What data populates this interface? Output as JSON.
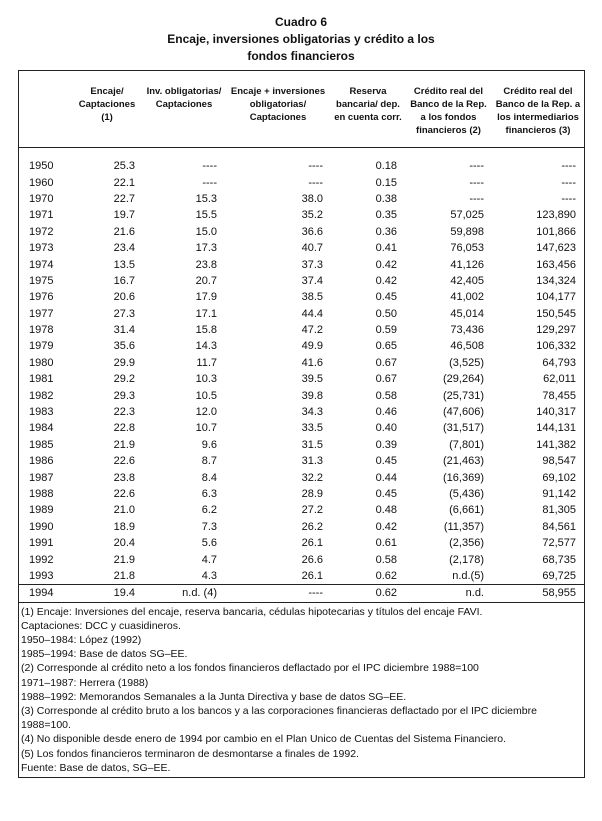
{
  "header": {
    "label": "Cuadro 6",
    "title_lines": [
      "Encaje, inversiones obligatorias y crédito a los",
      "fondos financieros"
    ]
  },
  "table": {
    "columns": [
      "Encaje/ Captaciones (1)",
      "Inv. obligatorias/ Captaciones",
      "Encaje + inversiones obligatorias/ Captaciones",
      "Reserva bancaria/ dep. en cuenta corr.",
      "Crédito real del Banco de la Rep. a los fondos financieros (2)",
      "Crédito real del Banco de la Rep. a los intermediarios financieros (3)"
    ],
    "rows": [
      [
        "1950",
        "25.3",
        "----",
        "----",
        "0.18",
        "----",
        "----"
      ],
      [
        "1960",
        "22.1",
        "----",
        "----",
        "0.15",
        "----",
        "----"
      ],
      [
        "1970",
        "22.7",
        "15.3",
        "38.0",
        "0.38",
        "----",
        "----"
      ],
      [
        "1971",
        "19.7",
        "15.5",
        "35.2",
        "0.35",
        "57,025",
        "123,890"
      ],
      [
        "1972",
        "21.6",
        "15.0",
        "36.6",
        "0.36",
        "59,898",
        "101,866"
      ],
      [
        "1973",
        "23.4",
        "17.3",
        "40.7",
        "0.41",
        "76,053",
        "147,623"
      ],
      [
        "1974",
        "13.5",
        "23.8",
        "37.3",
        "0.42",
        "41,126",
        "163,456"
      ],
      [
        "1975",
        "16.7",
        "20.7",
        "37.4",
        "0.42",
        "42,405",
        "134,324"
      ],
      [
        "1976",
        "20.6",
        "17.9",
        "38.5",
        "0.45",
        "41,002",
        "104,177"
      ],
      [
        "1977",
        "27.3",
        "17.1",
        "44.4",
        "0.50",
        "45,014",
        "150,545"
      ],
      [
        "1978",
        "31.4",
        "15.8",
        "47.2",
        "0.59",
        "73,436",
        "129,297"
      ],
      [
        "1979",
        "35.6",
        "14.3",
        "49.9",
        "0.65",
        "46,508",
        "106,332"
      ],
      [
        "1980",
        "29.9",
        "11.7",
        "41.6",
        "0.67",
        "(3,525)",
        "64,793"
      ],
      [
        "1981",
        "29.2",
        "10.3",
        "39.5",
        "0.67",
        "(29,264)",
        "62,011"
      ],
      [
        "1982",
        "29.3",
        "10.5",
        "39.8",
        "0.58",
        "(25,731)",
        "78,455"
      ],
      [
        "1983",
        "22.3",
        "12.0",
        "34.3",
        "0.46",
        "(47,606)",
        "140,317"
      ],
      [
        "1984",
        "22.8",
        "10.7",
        "33.5",
        "0.40",
        "(31,517)",
        "144,131"
      ],
      [
        "1985",
        "21.9",
        "9.6",
        "31.5",
        "0.39",
        "(7,801)",
        "141,382"
      ],
      [
        "1986",
        "22.6",
        "8.7",
        "31.3",
        "0.45",
        "(21,463)",
        "98,547"
      ],
      [
        "1987",
        "23.8",
        "8.4",
        "32.2",
        "0.44",
        "(16,369)",
        "69,102"
      ],
      [
        "1988",
        "22.6",
        "6.3",
        "28.9",
        "0.45",
        "(5,436)",
        "91,142"
      ],
      [
        "1989",
        "21.0",
        "6.2",
        "27.2",
        "0.48",
        "(6,661)",
        "81,305"
      ],
      [
        "1990",
        "18.9",
        "7.3",
        "26.2",
        "0.42",
        "(11,357)",
        "84,561"
      ],
      [
        "1991",
        "20.4",
        "5.6",
        "26.1",
        "0.61",
        "(2,356)",
        "72,577"
      ],
      [
        "1992",
        "21.9",
        "4.7",
        "26.6",
        "0.58",
        "(2,178)",
        "68,735"
      ],
      [
        "1993",
        "21.8",
        "4.3",
        "26.1",
        "0.62",
        "n.d.(5)",
        "69,725"
      ],
      [
        "1994",
        "19.4",
        "n.d. (4)",
        "----",
        "0.62",
        "n.d.",
        "58,955"
      ]
    ]
  },
  "notes": [
    "(1)  Encaje: Inversiones del encaje, reserva bancaria, cédulas hipotecarias y títulos del encaje FAVI.",
    "Captaciones: DCC y cuasidineros.",
    "1950–1984: López (1992)",
    "1985–1994: Base de datos SG–EE.",
    "(2)  Corresponde al crédito neto a los fondos financieros deflactado por el IPC diciembre 1988=100",
    "1971–1987: Herrera (1988)",
    "1988–1992: Memorandos Semanales a la Junta Directiva y base de datos SG–EE.",
    "(3)  Corresponde al crédito bruto a los bancos y a las corporaciones financieras deflactado por el IPC diciembre 1988=100.",
    "(4)  No disponible desde enero de 1994 por cambio en el Plan Unico de Cuentas del Sistema Financiero.",
    "(5)  Los fondos financieros terminaron de desmontarse a finales de 1992.",
    "Fuente:  Base de datos, SG–EE."
  ]
}
